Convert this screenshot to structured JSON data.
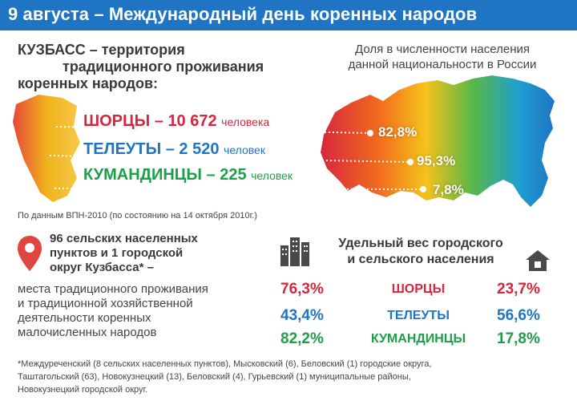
{
  "header": {
    "title": "9 августа – Международный день коренных народов"
  },
  "kuzbass": {
    "title_lines": [
      "КУЗБАСС – территория",
      "традиционного проживания",
      "коренных народов:"
    ]
  },
  "share": {
    "title_lines": [
      "Доля в численности населения",
      "данной национальности в России"
    ]
  },
  "peoples": [
    {
      "name": "ШОРЦЫ",
      "count": "10 672",
      "unit": "человека",
      "share_russia": "82,8%",
      "color": "#d7263d"
    },
    {
      "name": "ТЕЛЕУТЫ",
      "count": "2 520",
      "unit": "человек",
      "share_russia": "95,3%",
      "color": "#1f74c4"
    },
    {
      "name": "КУМАНДИНЦЫ",
      "count": "225",
      "unit": "человек",
      "share_russia": "7,8%",
      "color": "#1f9e49"
    }
  ],
  "source_note": "По данным ВПН-2010 (по состоянию на 14 октября 2010г.)",
  "settlements": {
    "title_lines": [
      "96 сельских населенных",
      "пунктов и 1 городской",
      "округ Кузбасса* –"
    ],
    "desc_lines": [
      "места традиционного проживания",
      "и традиционной хозяйственной",
      "деятельности коренных",
      "малочисленных народов"
    ]
  },
  "urban_rural": {
    "title_lines": [
      "Удельный вес городского",
      "и сельского населения"
    ],
    "rows": [
      {
        "name": "ШОРЦЫ",
        "urban": "76,3%",
        "rural": "23,7%",
        "color": "#d7263d"
      },
      {
        "name": "ТЕЛЕУТЫ",
        "urban": "43,4%",
        "rural": "56,6%",
        "color": "#1f74c4"
      },
      {
        "name": "КУМАНДИНЦЫ",
        "urban": "82,2%",
        "rural": "17,8%",
        "color": "#1f9e49"
      }
    ]
  },
  "footnote_lines": [
    "*Междуреченский (8 сельских населенных пунктов), Мысковский (6), Беловский (1) городские округа,",
    "Таштагольский (63), Новокузнецкий (13), Беловский (4), Гурьевский (1) муниципальные районы,",
    "Новокузнецкий городской округ."
  ],
  "icons": [
    "location-pin-icon",
    "city-buildings-icon",
    "house-icon"
  ]
}
